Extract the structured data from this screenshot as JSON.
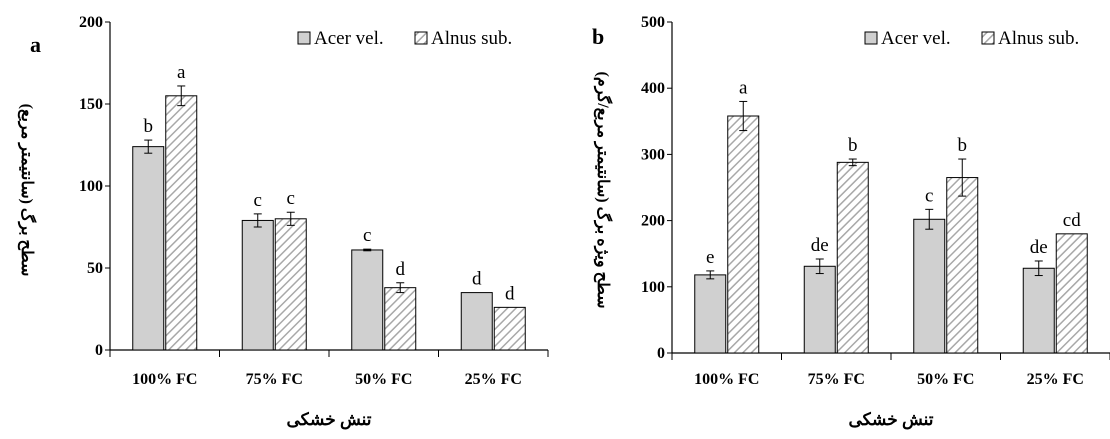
{
  "chart_data": [
    {
      "type": "bar",
      "panel_label": "a",
      "categories": [
        "100% FC",
        "75% FC",
        "50% FC",
        "25% FC"
      ],
      "series": [
        {
          "name": "Acer vel.",
          "values": [
            124,
            79,
            61,
            35
          ],
          "errors": [
            4,
            4,
            0.5,
            0
          ],
          "letters": [
            "b",
            "c",
            "c",
            "d"
          ]
        },
        {
          "name": "Alnus sub.",
          "values": [
            155,
            80,
            38,
            26
          ],
          "errors": [
            6,
            4,
            3,
            0
          ],
          "letters": [
            "a",
            "c",
            "d",
            "d"
          ]
        }
      ],
      "xlabel": "تنش خشکی",
      "ylabel": "سطح برگ (سانتیمتر مربع)",
      "ylim": [
        0,
        200
      ],
      "yticks": [
        0,
        50,
        100,
        150,
        200
      ],
      "legend_position": "top-right",
      "colors": {
        "acer": "#d0d0d0",
        "alnus_hatch": "#a8a8a8",
        "stroke": "#000000"
      }
    },
    {
      "type": "bar",
      "panel_label": "b",
      "categories": [
        "100% FC",
        "75% FC",
        "50% FC",
        "25% FC"
      ],
      "series": [
        {
          "name": "Acer vel.",
          "values": [
            118,
            131,
            202,
            128
          ],
          "errors": [
            6,
            11,
            15,
            11
          ],
          "letters": [
            "e",
            "de",
            "c",
            "de"
          ]
        },
        {
          "name": "Alnus sub.",
          "values": [
            358,
            288,
            265,
            180
          ],
          "errors": [
            22,
            5,
            28,
            0
          ],
          "letters": [
            "a",
            "b",
            "b",
            "cd"
          ]
        }
      ],
      "xlabel": "تنش خشکی",
      "ylabel": "سطح ویژه برگ (سانتیمتر مربع/گرم)",
      "ylim": [
        0,
        500
      ],
      "yticks": [
        0,
        100,
        200,
        300,
        400,
        500
      ],
      "legend_position": "top-right",
      "colors": {
        "acer": "#d0d0d0",
        "alnus_hatch": "#a8a8a8",
        "stroke": "#000000"
      }
    }
  ]
}
